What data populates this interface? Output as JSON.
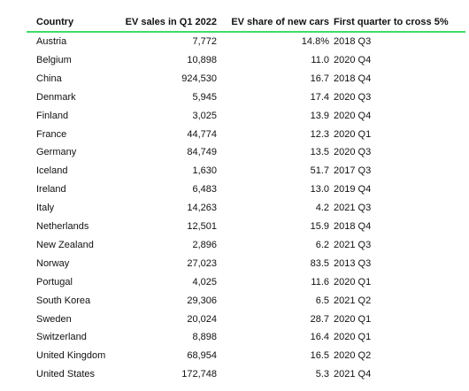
{
  "table": {
    "header": [
      "Country",
      "EV sales in Q1 2022",
      "EV share of new cars",
      "First quarter to cross 5%"
    ],
    "rows": [
      [
        "Austria",
        "7,772",
        "14.8%",
        "2018 Q3"
      ],
      [
        "Belgium",
        "10,898",
        "11.0",
        "2020 Q4"
      ],
      [
        "China",
        "924,530",
        "16.7",
        "2018 Q4"
      ],
      [
        "Denmark",
        "5,945",
        "17.4",
        "2020 Q3"
      ],
      [
        "Finland",
        "3,025",
        "13.9",
        "2020 Q4"
      ],
      [
        "France",
        "44,774",
        "12.3",
        "2020 Q1"
      ],
      [
        "Germany",
        "84,749",
        "13.5",
        "2020 Q3"
      ],
      [
        "Iceland",
        "1,630",
        "51.7",
        "2017 Q3"
      ],
      [
        "Ireland",
        "6,483",
        "13.0",
        "2019 Q4"
      ],
      [
        "Italy",
        "14,263",
        "4.2",
        "2021 Q3"
      ],
      [
        "Netherlands",
        "12,501",
        "15.9",
        "2018 Q4"
      ],
      [
        "New Zealand",
        "2,896",
        "6.2",
        "2021 Q3"
      ],
      [
        "Norway",
        "27,023",
        "83.5",
        "2013 Q3"
      ],
      [
        "Portugal",
        "4,025",
        "11.6",
        "2020 Q1"
      ],
      [
        "South Korea",
        "29,306",
        "6.5",
        "2021 Q2"
      ],
      [
        "Sweden",
        "20,024",
        "28.7",
        "2020 Q1"
      ],
      [
        "Switzerland",
        "8,898",
        "16.4",
        "2020 Q1"
      ],
      [
        "United Kingdom",
        "68,954",
        "16.5",
        "2020 Q2"
      ],
      [
        "United States",
        "172,748",
        "5.3",
        "2021 Q4"
      ]
    ]
  }
}
